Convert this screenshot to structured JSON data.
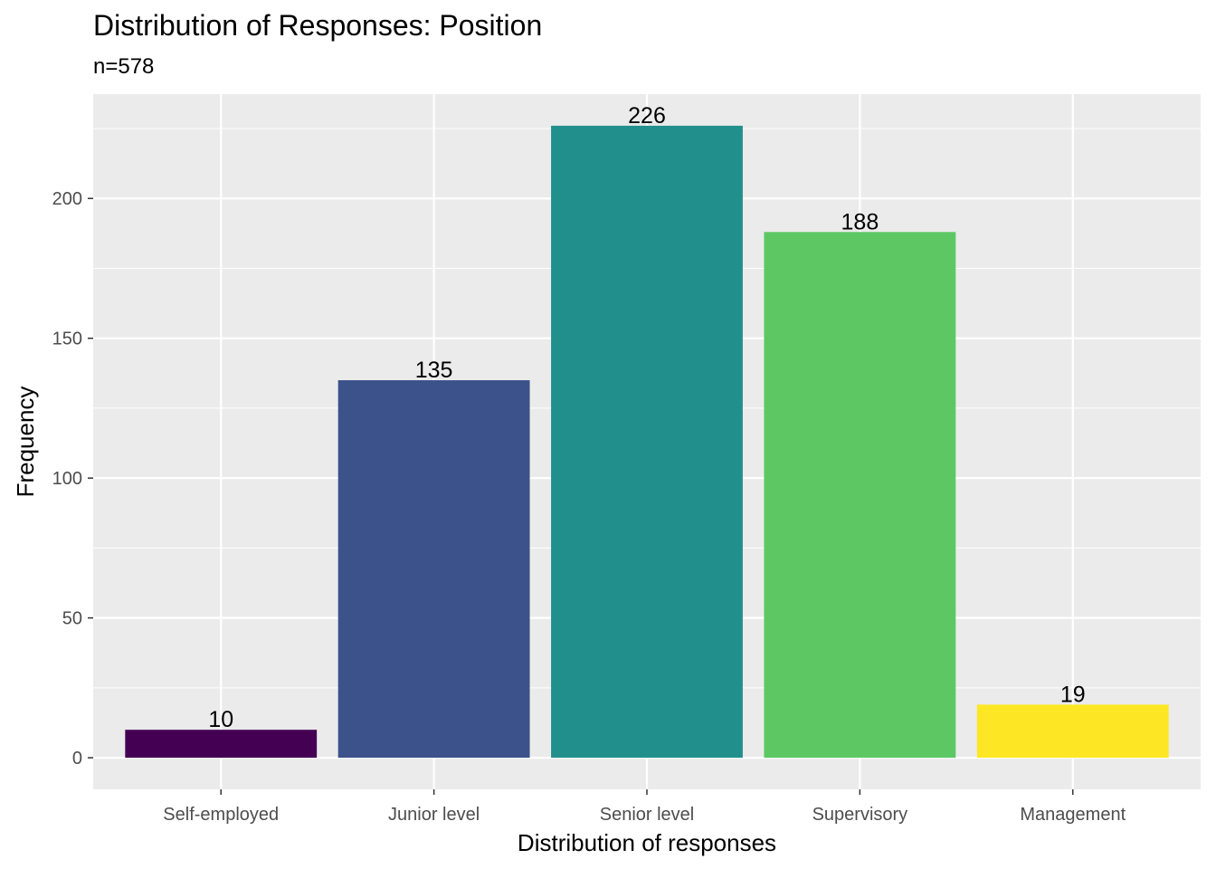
{
  "chart_data": {
    "type": "bar",
    "title": "Distribution of Responses: Position",
    "subtitle": "n=578",
    "xlabel": "Distribution of responses",
    "ylabel": "Frequency",
    "categories": [
      "Self-employed",
      "Junior level",
      "Senior level",
      "Supervisory",
      "Management"
    ],
    "values": [
      10,
      135,
      226,
      188,
      19
    ],
    "colors": [
      "#440154",
      "#3B528B",
      "#21908C",
      "#5DC863",
      "#FDE725"
    ],
    "ylim": [
      -11.3,
      237.3
    ],
    "yticks": [
      0,
      50,
      100,
      150,
      200
    ],
    "grid": true,
    "panel_background": "#EBEBEB",
    "legend": "none"
  }
}
